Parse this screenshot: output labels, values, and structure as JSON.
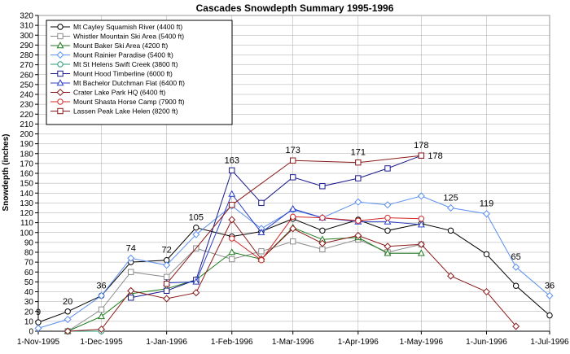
{
  "chart_data": {
    "type": "line",
    "title": "Cascades Snowdepth Summary 1995-1996",
    "xlabel": "",
    "ylabel": "Snowdepth (inches)",
    "ylim": [
      0,
      320
    ],
    "ytick_step": 10,
    "grid": true,
    "legend_placement": "top-left",
    "x_ticks": [
      {
        "date": "1995-11-01",
        "label": "1-Nov-1995"
      },
      {
        "date": "1995-12-01",
        "label": "1-Dec-1995"
      },
      {
        "date": "1996-01-01",
        "label": "1-Jan-1996"
      },
      {
        "date": "1996-02-01",
        "label": "1-Feb-1996"
      },
      {
        "date": "1996-03-01",
        "label": "1-Mar-1996"
      },
      {
        "date": "1996-04-01",
        "label": "1-Apr-1996"
      },
      {
        "date": "1996-05-01",
        "label": "1-May-1996"
      },
      {
        "date": "1996-06-01",
        "label": "1-Jun-1996"
      },
      {
        "date": "1996-07-01",
        "label": "1-Jul-1996"
      }
    ],
    "series": [
      {
        "name": "Mt Cayley Squamish River (4400 ft)",
        "color": "#000000",
        "marker": "circle",
        "points": [
          [
            "1995-11-01",
            9
          ],
          [
            "1995-11-15",
            20
          ],
          [
            "1995-12-01",
            36
          ],
          [
            "1995-12-15",
            70
          ],
          [
            "1996-01-01",
            72
          ],
          [
            "1996-01-15",
            105
          ],
          [
            "1996-02-01",
            96
          ],
          [
            "1996-02-15",
            101
          ],
          [
            "1996-03-01",
            114
          ],
          [
            "1996-03-15",
            102
          ],
          [
            "1996-04-01",
            113
          ],
          [
            "1996-04-15",
            102
          ],
          [
            "1996-05-01",
            109
          ],
          [
            "1996-05-15",
            102
          ],
          [
            "1996-06-01",
            78
          ],
          [
            "1996-06-15",
            46
          ],
          [
            "1996-07-01",
            16
          ]
        ]
      },
      {
        "name": "Whistler Mountain Ski Area (5400 ft)",
        "color": "#8c8c8c",
        "marker": "square",
        "points": [
          [
            "1995-11-15",
            0
          ],
          [
            "1995-12-01",
            22
          ],
          [
            "1995-12-15",
            60
          ],
          [
            "1996-01-01",
            55
          ],
          [
            "1996-01-15",
            84
          ],
          [
            "1996-02-01",
            73
          ],
          [
            "1996-02-15",
            81
          ],
          [
            "1996-03-01",
            91
          ],
          [
            "1996-03-15",
            83
          ],
          [
            "1996-04-01",
            93
          ],
          [
            "1996-04-15",
            80
          ],
          [
            "1996-05-01",
            88
          ]
        ]
      },
      {
        "name": "Mount Baker Ski Area (4200 ft)",
        "color": "#1e7a1e",
        "marker": "triangle",
        "points": [
          [
            "1995-11-15",
            0
          ],
          [
            "1995-12-01",
            15
          ],
          [
            "1995-12-15",
            38
          ],
          [
            "1996-01-01",
            43
          ],
          [
            "1996-01-15",
            52
          ],
          [
            "1996-02-01",
            80
          ],
          [
            "1996-02-15",
            73
          ],
          [
            "1996-03-01",
            105
          ],
          [
            "1996-03-15",
            93
          ],
          [
            "1996-04-01",
            95
          ],
          [
            "1996-04-15",
            79
          ],
          [
            "1996-05-01",
            79
          ]
        ]
      },
      {
        "name": "Mount Rainier Paradise (5400 ft)",
        "color": "#5b8ff0",
        "marker": "diamond",
        "points": [
          [
            "1995-11-01",
            3
          ],
          [
            "1995-11-15",
            12
          ],
          [
            "1995-12-01",
            36
          ],
          [
            "1995-12-15",
            74
          ],
          [
            "1996-01-01",
            67
          ],
          [
            "1996-01-15",
            98
          ],
          [
            "1996-02-01",
            127
          ],
          [
            "1996-02-15",
            104
          ],
          [
            "1996-03-01",
            123
          ],
          [
            "1996-03-15",
            115
          ],
          [
            "1996-04-01",
            131
          ],
          [
            "1996-04-15",
            128
          ],
          [
            "1996-05-01",
            137
          ],
          [
            "1996-05-15",
            125
          ],
          [
            "1996-06-01",
            119
          ],
          [
            "1996-06-15",
            65
          ],
          [
            "1996-07-01",
            36
          ]
        ]
      },
      {
        "name": "Mt St Helens Swift Creek (3800 ft)",
        "color": "#2a9a7a",
        "marker": "circle",
        "points": [
          [
            "1995-11-15",
            0
          ],
          [
            "1995-12-01",
            0
          ]
        ]
      },
      {
        "name": "Mount Hood Timberline (6000 ft)",
        "color": "#1a1a8c",
        "marker": "square",
        "points": [
          [
            "1995-12-15",
            34
          ],
          [
            "1996-01-01",
            41
          ],
          [
            "1996-01-15",
            52
          ],
          [
            "1996-02-01",
            163
          ],
          [
            "1996-02-15",
            130
          ],
          [
            "1996-03-01",
            156
          ],
          [
            "1996-03-15",
            147
          ],
          [
            "1996-04-01",
            155
          ],
          [
            "1996-04-15",
            165
          ],
          [
            "1996-05-01",
            178
          ]
        ]
      },
      {
        "name": "Mt Bachelor Dutchman Flat (6400 ft)",
        "color": "#2b3fc4",
        "marker": "triangle",
        "points": [
          [
            "1996-01-01",
            49
          ],
          [
            "1996-01-15",
            50
          ],
          [
            "1996-02-01",
            139
          ],
          [
            "1996-02-15",
            100
          ],
          [
            "1996-03-01",
            124
          ],
          [
            "1996-03-15",
            115
          ],
          [
            "1996-04-01",
            111
          ],
          [
            "1996-04-15",
            111
          ],
          [
            "1996-05-01",
            108
          ]
        ]
      },
      {
        "name": "Crater Lake Park HQ (6400 ft)",
        "color": "#8b1a1a",
        "marker": "diamond",
        "points": [
          [
            "1995-11-15",
            0
          ],
          [
            "1995-12-01",
            2
          ],
          [
            "1995-12-15",
            41
          ],
          [
            "1996-01-01",
            33
          ],
          [
            "1996-01-15",
            39
          ],
          [
            "1996-02-01",
            113
          ],
          [
            "1996-02-15",
            73
          ],
          [
            "1996-03-01",
            104
          ],
          [
            "1996-03-15",
            89
          ],
          [
            "1996-04-01",
            97
          ],
          [
            "1996-04-15",
            86
          ],
          [
            "1996-05-01",
            88
          ],
          [
            "1996-05-15",
            56
          ],
          [
            "1996-06-01",
            40
          ],
          [
            "1996-06-15",
            5
          ]
        ]
      },
      {
        "name": "Mount Shasta Horse Camp (7900 ft)",
        "color": "#d02828",
        "marker": "circle",
        "points": [
          [
            "1996-02-01",
            94
          ],
          [
            "1996-02-15",
            72
          ],
          [
            "1996-03-01",
            116
          ],
          [
            "1996-03-15",
            115
          ],
          [
            "1996-04-01",
            112
          ],
          [
            "1996-04-15",
            115
          ],
          [
            "1996-05-01",
            114
          ]
        ]
      },
      {
        "name": "Lassen Peak Lake Helen (8200 ft)",
        "color": "#8b1a1a",
        "marker": "square",
        "points": [
          [
            "1996-01-01",
            48
          ],
          [
            "1996-02-01",
            128
          ],
          [
            "1996-03-01",
            173
          ],
          [
            "1996-04-01",
            171
          ],
          [
            "1996-05-01",
            178
          ]
        ]
      }
    ],
    "annotations": [
      {
        "date": "1995-11-01",
        "value": 9,
        "label": "9"
      },
      {
        "date": "1995-11-15",
        "value": 20,
        "label": "20"
      },
      {
        "date": "1995-12-01",
        "value": 36,
        "label": "36"
      },
      {
        "date": "1995-12-15",
        "value": 74,
        "label": "74"
      },
      {
        "date": "1996-01-01",
        "value": 72,
        "label": "72"
      },
      {
        "date": "1996-01-15",
        "value": 105,
        "label": "105"
      },
      {
        "date": "1996-02-01",
        "value": 163,
        "label": "163"
      },
      {
        "date": "1996-03-01",
        "value": 173,
        "label": "173"
      },
      {
        "date": "1996-04-01",
        "value": 171,
        "label": "171"
      },
      {
        "date": "1996-05-01",
        "value": 178,
        "label": "178"
      },
      {
        "date": "1996-05-01",
        "value": 178,
        "label": "178",
        "side": "right"
      },
      {
        "date": "1996-05-15",
        "value": 125,
        "label": "125"
      },
      {
        "date": "1996-06-01",
        "value": 119,
        "label": "119"
      },
      {
        "date": "1996-06-15",
        "value": 65,
        "label": "65"
      },
      {
        "date": "1996-07-01",
        "value": 36,
        "label": "36"
      }
    ]
  }
}
